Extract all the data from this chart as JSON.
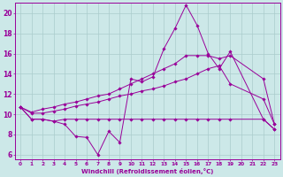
{
  "xlabel": "Windchill (Refroidissement éolien,°C)",
  "bg_color": "#cce8e8",
  "line_color": "#990099",
  "grid_color": "#aacccc",
  "xlim": [
    -0.5,
    23.5
  ],
  "ylim": [
    5.5,
    21.0
  ],
  "xticks": [
    0,
    1,
    2,
    3,
    4,
    5,
    6,
    7,
    8,
    9,
    10,
    11,
    12,
    13,
    14,
    15,
    16,
    17,
    18,
    19,
    20,
    21,
    22,
    23
  ],
  "yticks": [
    6,
    8,
    10,
    12,
    14,
    16,
    18,
    20
  ],
  "series": [
    [
      10.7,
      9.5,
      9.5,
      9.3,
      9.0,
      7.8,
      7.7,
      6.0,
      8.3,
      7.2,
      13.5,
      13.2,
      13.7,
      16.5,
      18.5,
      20.8,
      18.8,
      16.0,
      14.5,
      16.2,
      null,
      null,
      9.5,
      8.5
    ],
    [
      10.7,
      9.5,
      9.5,
      9.3,
      9.5,
      9.5,
      9.5,
      9.5,
      9.5,
      9.5,
      9.5,
      9.5,
      9.5,
      9.5,
      9.5,
      9.5,
      9.5,
      9.5,
      9.5,
      9.5,
      null,
      null,
      9.5,
      8.5
    ],
    [
      10.7,
      10.1,
      10.1,
      10.3,
      10.5,
      10.8,
      11.0,
      11.2,
      11.5,
      11.8,
      12.0,
      12.3,
      12.5,
      12.8,
      13.2,
      13.5,
      14.0,
      14.5,
      14.8,
      13.0,
      null,
      null,
      11.5,
      9.0
    ],
    [
      10.7,
      10.2,
      10.5,
      10.7,
      11.0,
      11.2,
      11.5,
      11.8,
      12.0,
      12.5,
      13.0,
      13.5,
      14.0,
      14.5,
      15.0,
      15.8,
      15.8,
      15.8,
      15.5,
      15.8,
      null,
      null,
      13.5,
      9.0
    ]
  ]
}
